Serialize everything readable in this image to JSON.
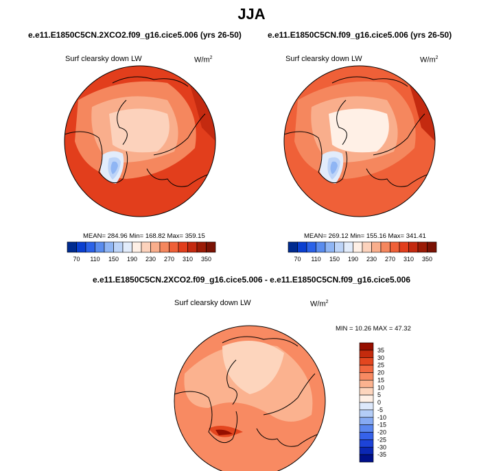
{
  "figure": {
    "season": "JJA"
  },
  "chart_data": [
    {
      "type": "heatmap",
      "title": "e.e11.E1850C5CN.2XCO2.f09_g16.cice5.006 (yrs 26-50)",
      "variable": "Surf clearsky down LW",
      "units": "W/m",
      "units_sup": "2",
      "stats": {
        "mean": 284.96,
        "min": 168.82,
        "max": 359.15
      },
      "stats_labels": {
        "mean": "MEAN=",
        "min": "Min=",
        "max": "Max="
      },
      "colorbar": {
        "orientation": "horizontal",
        "levels": [
          70,
          90,
          110,
          130,
          150,
          170,
          190,
          210,
          230,
          250,
          270,
          290,
          310,
          330,
          350
        ],
        "tick_labels": [
          "70",
          "110",
          "150",
          "190",
          "230",
          "270",
          "310",
          "350"
        ],
        "colors": [
          "#002b8f",
          "#0a3fd0",
          "#2b62e8",
          "#5a8cee",
          "#8fb5f4",
          "#bdd4f8",
          "#e2ecfb",
          "#fff0e6",
          "#fcd2bc",
          "#f9ae8c",
          "#f5875e",
          "#ef6038",
          "#e23e1c",
          "#c42a10",
          "#9b1b06",
          "#7a1204"
        ]
      },
      "projection": "north-polar-stereographic",
      "scene": "warm-2xco2"
    },
    {
      "type": "heatmap",
      "title": "e.e11.E1850C5CN.f09_g16.cice5.006 (yrs 26-50)",
      "variable": "Surf clearsky down LW",
      "units": "W/m",
      "units_sup": "2",
      "stats": {
        "mean": 269.12,
        "min": 155.16,
        "max": 341.41
      },
      "stats_labels": {
        "mean": "MEAN=",
        "min": "Min=",
        "max": "Max="
      },
      "colorbar": {
        "orientation": "horizontal",
        "levels": [
          70,
          90,
          110,
          130,
          150,
          170,
          190,
          210,
          230,
          250,
          270,
          290,
          310,
          330,
          350
        ],
        "tick_labels": [
          "70",
          "110",
          "150",
          "190",
          "230",
          "270",
          "310",
          "350"
        ],
        "colors": [
          "#002b8f",
          "#0a3fd0",
          "#2b62e8",
          "#5a8cee",
          "#8fb5f4",
          "#bdd4f8",
          "#e2ecfb",
          "#fff0e6",
          "#fcd2bc",
          "#f9ae8c",
          "#f5875e",
          "#ef6038",
          "#e23e1c",
          "#c42a10",
          "#9b1b06",
          "#7a1204"
        ]
      },
      "projection": "north-polar-stereographic",
      "scene": "control"
    },
    {
      "type": "heatmap",
      "title": "e.e11.E1850C5CN.2XCO2.f09_g16.cice5.006 - e.e11.E1850C5CN.f09_g16.cice5.006",
      "variable": "Surf clearsky down LW",
      "units": "W/m",
      "units_sup": "2",
      "stats": {
        "min": 10.26,
        "max": 47.32
      },
      "stats_labels": {
        "min": "MIN =",
        "max": "MAX ="
      },
      "colorbar": {
        "orientation": "vertical",
        "levels": [
          -35,
          -30,
          -25,
          -20,
          -15,
          -10,
          -5,
          0,
          5,
          10,
          15,
          20,
          25,
          30,
          35
        ],
        "tick_labels": [
          "35",
          "30",
          "25",
          "20",
          "15",
          "10",
          "5",
          "0",
          "-5",
          "-10",
          "-15",
          "-20",
          "-25",
          "-30",
          "-35"
        ],
        "colors": [
          "#00108a",
          "#0b27b4",
          "#1d43d8",
          "#3662ea",
          "#5a86ef",
          "#86aaf3",
          "#b4cdf7",
          "#dde8fb",
          "#fff0e6",
          "#fdd5bd",
          "#fbb28f",
          "#f88a62",
          "#f2673f",
          "#e3461f",
          "#c42b0d",
          "#960f00"
        ]
      },
      "projection": "north-polar-stereographic",
      "scene": "difference"
    }
  ]
}
